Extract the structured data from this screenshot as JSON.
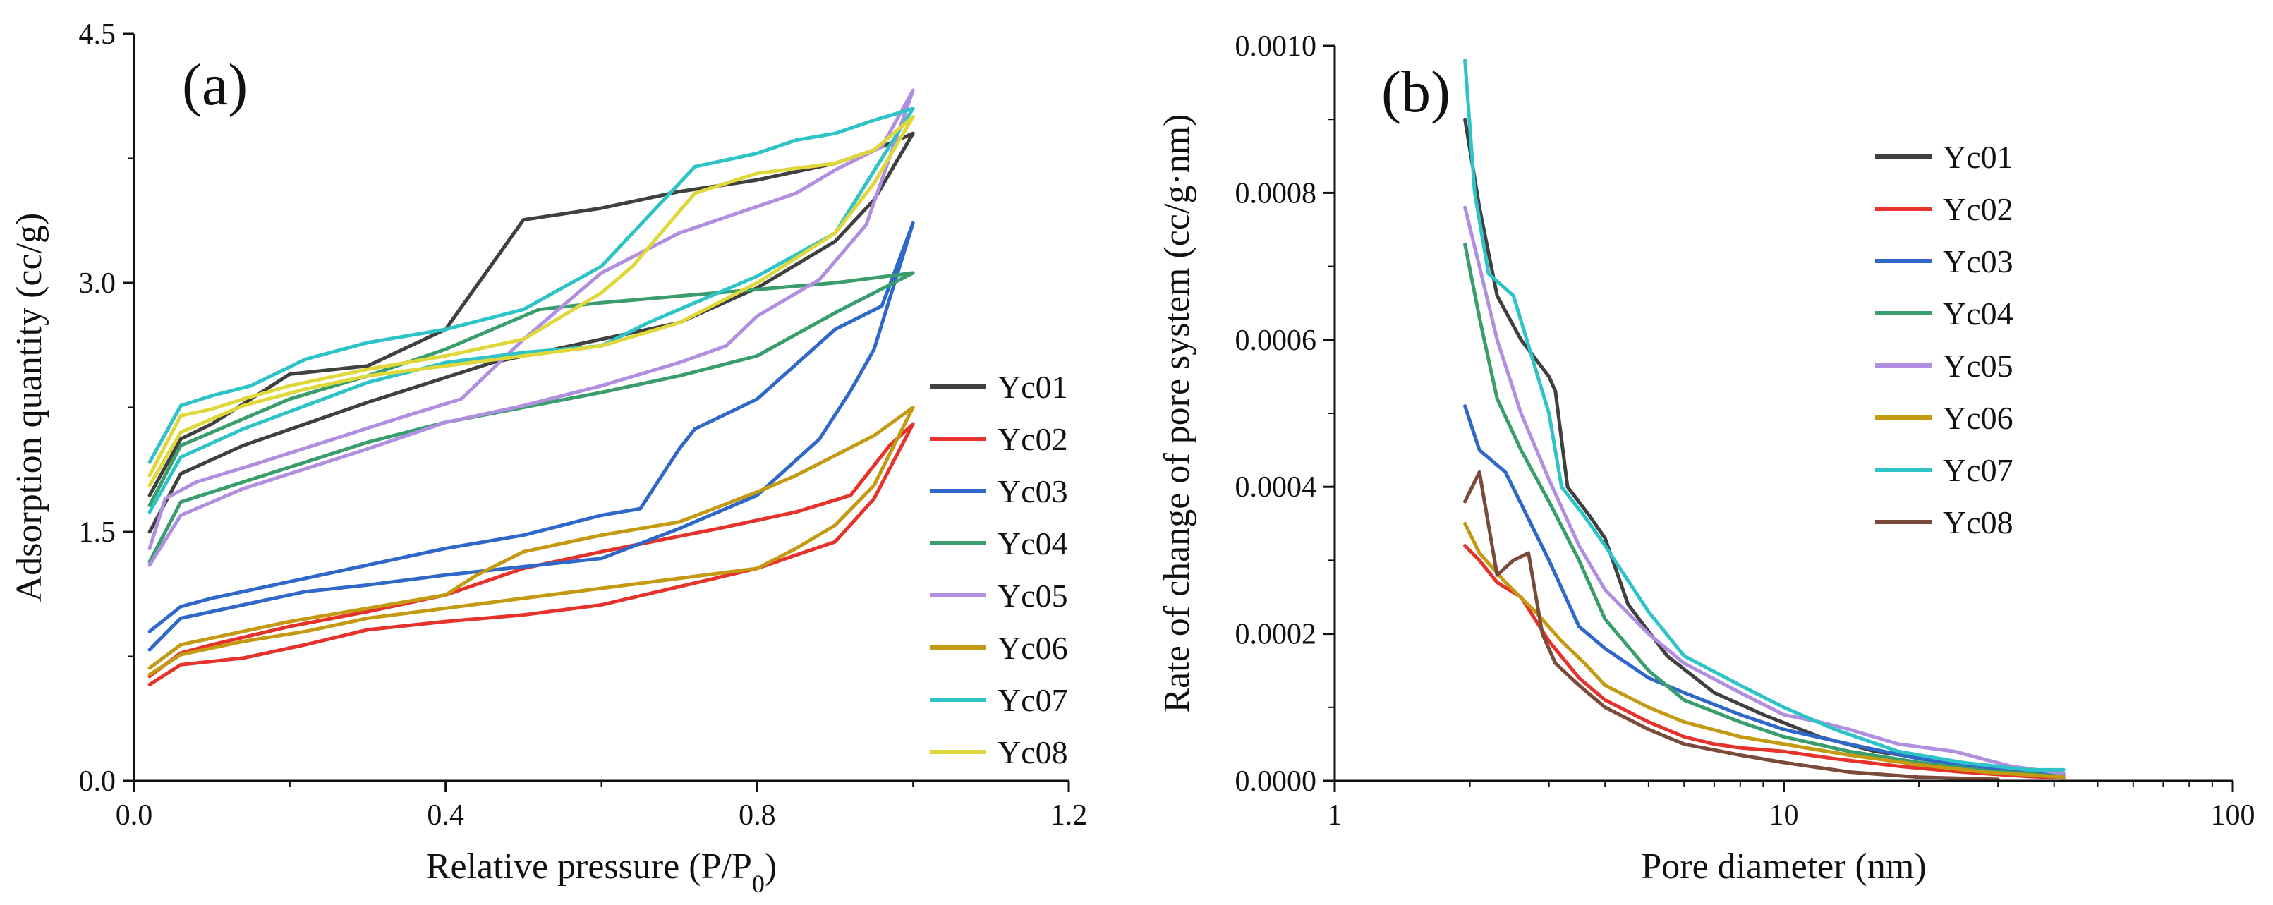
{
  "chart_data": [
    {
      "type": "line",
      "panel_label": "(a)",
      "xlabel": "Relative pressure (P/P",
      "xlabel_subscript": "0",
      "xlabel_suffix": ")",
      "ylabel": "Adsorption quantity (cc/g)",
      "xlim": [
        0,
        1.2
      ],
      "ylim": [
        0,
        4.5
      ],
      "xticks": [
        0.0,
        0.4,
        0.8,
        1.2
      ],
      "xtick_labels": [
        "0.0",
        "0.4",
        "0.8",
        "1.2"
      ],
      "yticks": [
        0.0,
        1.5,
        3.0,
        4.5
      ],
      "ytick_labels": [
        "0.0",
        "1.5",
        "3.0",
        "4.5"
      ],
      "legend_position": "right",
      "series": [
        {
          "name": "Yc01",
          "color": "#404040",
          "x": [
            0.02,
            0.06,
            0.14,
            0.22,
            0.3,
            0.38,
            0.42,
            0.46,
            0.5,
            0.6,
            0.7,
            0.8,
            0.9,
            0.95,
            1.0,
            0.95,
            0.9,
            0.8,
            0.7,
            0.6,
            0.5,
            0.4,
            0.3,
            0.2,
            0.1,
            0.06,
            0.02
          ],
          "y": [
            1.5,
            1.85,
            2.02,
            2.15,
            2.28,
            2.4,
            2.46,
            2.52,
            2.56,
            2.66,
            2.76,
            2.97,
            3.25,
            3.5,
            3.9,
            3.8,
            3.72,
            3.62,
            3.55,
            3.45,
            3.38,
            2.72,
            2.5,
            2.45,
            2.15,
            2.06,
            1.72
          ]
        },
        {
          "name": "Yc02",
          "color": "#e5322a",
          "x": [
            0.02,
            0.06,
            0.14,
            0.22,
            0.3,
            0.4,
            0.5,
            0.6,
            0.7,
            0.8,
            0.85,
            0.9,
            0.95,
            1.0,
            0.97,
            0.92,
            0.85,
            0.75,
            0.6,
            0.5,
            0.4,
            0.3,
            0.2,
            0.1,
            0.06,
            0.02
          ],
          "y": [
            0.58,
            0.7,
            0.74,
            0.82,
            0.91,
            0.96,
            1.0,
            1.06,
            1.17,
            1.28,
            1.36,
            1.44,
            1.7,
            2.15,
            2.02,
            1.72,
            1.62,
            1.52,
            1.38,
            1.28,
            1.12,
            1.02,
            0.93,
            0.82,
            0.77,
            0.63
          ]
        },
        {
          "name": "Yc03",
          "color": "#2f68c8",
          "x": [
            0.02,
            0.06,
            0.14,
            0.22,
            0.3,
            0.4,
            0.5,
            0.6,
            0.7,
            0.8,
            0.88,
            0.92,
            0.95,
            1.0,
            0.96,
            0.9,
            0.8,
            0.72,
            0.7,
            0.65,
            0.6,
            0.5,
            0.4,
            0.3,
            0.2,
            0.1,
            0.06,
            0.02
          ],
          "y": [
            0.79,
            0.98,
            1.06,
            1.14,
            1.18,
            1.24,
            1.29,
            1.34,
            1.52,
            1.72,
            2.06,
            2.35,
            2.6,
            3.36,
            2.86,
            2.72,
            2.3,
            2.12,
            2.0,
            1.64,
            1.6,
            1.48,
            1.4,
            1.3,
            1.2,
            1.1,
            1.05,
            0.9
          ]
        },
        {
          "name": "Yc04",
          "color": "#3a9e6c",
          "x": [
            0.02,
            0.06,
            0.14,
            0.22,
            0.3,
            0.4,
            0.5,
            0.6,
            0.7,
            0.8,
            0.9,
            1.0,
            0.9,
            0.8,
            0.7,
            0.6,
            0.52,
            0.4,
            0.3,
            0.2,
            0.1,
            0.06,
            0.02
          ],
          "y": [
            1.32,
            1.68,
            1.8,
            1.92,
            2.04,
            2.16,
            2.25,
            2.34,
            2.44,
            2.56,
            2.82,
            3.06,
            3.0,
            2.96,
            2.92,
            2.88,
            2.84,
            2.6,
            2.44,
            2.3,
            2.1,
            2.02,
            1.66
          ]
        },
        {
          "name": "Yc05",
          "color": "#b08fe0",
          "x": [
            0.02,
            0.06,
            0.14,
            0.22,
            0.3,
            0.4,
            0.5,
            0.6,
            0.7,
            0.76,
            0.8,
            0.88,
            0.94,
            1.0,
            0.96,
            0.9,
            0.85,
            0.8,
            0.7,
            0.6,
            0.5,
            0.42,
            0.35,
            0.25,
            0.15,
            0.08,
            0.04,
            0.02
          ],
          "y": [
            1.3,
            1.6,
            1.76,
            1.88,
            2.0,
            2.16,
            2.26,
            2.38,
            2.52,
            2.62,
            2.8,
            3.02,
            3.35,
            4.16,
            3.82,
            3.68,
            3.54,
            3.46,
            3.3,
            3.06,
            2.66,
            2.3,
            2.2,
            2.05,
            1.9,
            1.8,
            1.7,
            1.4
          ]
        },
        {
          "name": "Yc06",
          "color": "#c49a12",
          "x": [
            0.02,
            0.06,
            0.14,
            0.22,
            0.3,
            0.4,
            0.5,
            0.6,
            0.7,
            0.8,
            0.85,
            0.9,
            0.95,
            1.0,
            0.95,
            0.9,
            0.85,
            0.8,
            0.7,
            0.6,
            0.5,
            0.44,
            0.4,
            0.3,
            0.2,
            0.1,
            0.06,
            0.02
          ],
          "y": [
            0.64,
            0.76,
            0.84,
            0.9,
            0.98,
            1.04,
            1.1,
            1.16,
            1.22,
            1.28,
            1.4,
            1.54,
            1.78,
            2.25,
            2.08,
            1.96,
            1.84,
            1.74,
            1.56,
            1.48,
            1.38,
            1.24,
            1.12,
            1.04,
            0.96,
            0.86,
            0.82,
            0.68
          ]
        },
        {
          "name": "Yc07",
          "color": "#2ec3c7",
          "x": [
            0.02,
            0.06,
            0.14,
            0.22,
            0.3,
            0.4,
            0.5,
            0.6,
            0.66,
            0.7,
            0.8,
            0.9,
            1.0,
            0.95,
            0.9,
            0.85,
            0.8,
            0.72,
            0.6,
            0.5,
            0.4,
            0.3,
            0.22,
            0.15,
            0.1,
            0.06,
            0.02
          ],
          "y": [
            1.62,
            1.95,
            2.12,
            2.26,
            2.4,
            2.52,
            2.58,
            2.62,
            2.76,
            2.84,
            3.04,
            3.3,
            4.05,
            3.98,
            3.9,
            3.86,
            3.78,
            3.7,
            3.1,
            2.84,
            2.72,
            2.64,
            2.54,
            2.38,
            2.32,
            2.26,
            1.92
          ]
        },
        {
          "name": "Yc08",
          "color": "#e0d83a",
          "x": [
            0.02,
            0.06,
            0.14,
            0.22,
            0.3,
            0.4,
            0.5,
            0.6,
            0.7,
            0.8,
            0.9,
            0.95,
            1.0,
            0.95,
            0.9,
            0.8,
            0.72,
            0.64,
            0.6,
            0.5,
            0.4,
            0.3,
            0.2,
            0.14,
            0.1,
            0.06,
            0.02
          ],
          "y": [
            1.78,
            2.1,
            2.26,
            2.36,
            2.44,
            2.5,
            2.56,
            2.62,
            2.76,
            3.0,
            3.3,
            3.6,
            4.0,
            3.8,
            3.72,
            3.66,
            3.54,
            3.1,
            2.94,
            2.66,
            2.56,
            2.48,
            2.38,
            2.3,
            2.24,
            2.2,
            1.84
          ]
        }
      ]
    },
    {
      "type": "line",
      "panel_label": "(b)",
      "xlabel": "Pore diameter (nm)",
      "ylabel": "Rate of change of pore system (cc/g·nm)",
      "xscale": "log",
      "xlim": [
        1,
        100
      ],
      "ylim": [
        0,
        0.001
      ],
      "xticks": [
        1,
        10,
        100
      ],
      "xtick_labels": [
        "1",
        "10",
        "100"
      ],
      "yticks": [
        0,
        0.0002,
        0.0004,
        0.0006,
        0.0008,
        0.001
      ],
      "ytick_labels": [
        "0.0000",
        "0.0002",
        "0.0004",
        "0.0006",
        "0.0008",
        "0.0010"
      ],
      "legend_position": "top-right",
      "series": [
        {
          "name": "Yc01",
          "color": "#404040",
          "x": [
            1.95,
            2.1,
            2.3,
            2.6,
            3.0,
            3.1,
            3.3,
            3.7,
            4.0,
            4.5,
            5.5,
            7,
            9,
            12,
            16,
            22,
            30,
            42
          ],
          "y": [
            0.0009,
            0.00078,
            0.00066,
            0.0006,
            0.00055,
            0.00053,
            0.0004,
            0.00036,
            0.00033,
            0.00024,
            0.00017,
            0.00012,
            9e-05,
            6e-05,
            4e-05,
            2.8e-05,
            1.5e-05,
            1e-05
          ]
        },
        {
          "name": "Yc02",
          "color": "#e5322a",
          "x": [
            1.95,
            2.1,
            2.3,
            2.6,
            3.0,
            3.5,
            4,
            5,
            6,
            7,
            8,
            10,
            13,
            18,
            25,
            35,
            42
          ],
          "y": [
            0.00032,
            0.0003,
            0.00027,
            0.00025,
            0.00019,
            0.00014,
            0.00011,
            8e-05,
            6e-05,
            5e-05,
            4.5e-05,
            4e-05,
            3e-05,
            2e-05,
            1.2e-05,
            6e-06,
            4e-06
          ]
        },
        {
          "name": "Yc03",
          "color": "#2f68c8",
          "x": [
            1.95,
            2.1,
            2.4,
            3.0,
            3.5,
            4,
            5,
            6,
            8,
            10,
            14,
            20,
            28,
            42
          ],
          "y": [
            0.00051,
            0.00045,
            0.00042,
            0.0003,
            0.00021,
            0.00018,
            0.00014,
            0.00012,
            9e-05,
            7e-05,
            5e-05,
            3e-05,
            1.8e-05,
            8e-06
          ]
        },
        {
          "name": "Yc04",
          "color": "#3a9e6c",
          "x": [
            1.95,
            2.1,
            2.3,
            2.6,
            3.0,
            3.5,
            4,
            5,
            6,
            8,
            10,
            14,
            20,
            28,
            42
          ],
          "y": [
            0.00073,
            0.00063,
            0.00052,
            0.00045,
            0.00038,
            0.0003,
            0.00022,
            0.00015,
            0.00011,
            8e-05,
            6e-05,
            4e-05,
            2.5e-05,
            1.4e-05,
            6e-06
          ]
        },
        {
          "name": "Yc05",
          "color": "#b08fe0",
          "x": [
            1.95,
            2.1,
            2.3,
            2.6,
            3.0,
            3.5,
            4,
            5,
            6,
            8,
            10,
            12,
            14,
            18,
            24,
            32,
            42
          ],
          "y": [
            0.00078,
            0.0007,
            0.0006,
            0.0005,
            0.00041,
            0.00032,
            0.00026,
            0.0002,
            0.00016,
            0.00012,
            9e-05,
            8e-05,
            7e-05,
            5e-05,
            4e-05,
            2e-05,
            1e-05
          ]
        },
        {
          "name": "Yc06",
          "color": "#c49a12",
          "x": [
            1.95,
            2.1,
            2.4,
            2.8,
            3.2,
            3.6,
            4,
            5,
            6,
            8,
            10,
            14,
            20,
            28,
            42
          ],
          "y": [
            0.00035,
            0.00031,
            0.00027,
            0.00023,
            0.00019,
            0.00016,
            0.00013,
            0.0001,
            8e-05,
            6e-05,
            5e-05,
            3.5e-05,
            2.2e-05,
            1.2e-05,
            5e-06
          ]
        },
        {
          "name": "Yc07",
          "color": "#2ec3c7",
          "x": [
            1.95,
            2.05,
            2.2,
            2.5,
            3.0,
            3.2,
            3.6,
            4,
            5,
            6,
            8,
            10,
            13,
            18,
            25,
            35,
            42
          ],
          "y": [
            0.00098,
            0.0008,
            0.00069,
            0.00066,
            0.0005,
            0.0004,
            0.00036,
            0.00032,
            0.00023,
            0.00017,
            0.00013,
            0.0001,
            7e-05,
            4e-05,
            2.5e-05,
            1.5e-05,
            1.5e-05
          ]
        },
        {
          "name": "Yc08",
          "color": "#7a4a3a",
          "x": [
            1.95,
            2.1,
            2.3,
            2.5,
            2.7,
            2.9,
            3.1,
            3.5,
            4,
            5,
            6,
            8,
            10,
            14,
            20,
            30
          ],
          "y": [
            0.00038,
            0.00042,
            0.00028,
            0.0003,
            0.00031,
            0.0002,
            0.00016,
            0.00013,
            0.0001,
            7e-05,
            5e-05,
            3.5e-05,
            2.5e-05,
            1.2e-05,
            5e-06,
            2e-06
          ]
        }
      ]
    }
  ]
}
